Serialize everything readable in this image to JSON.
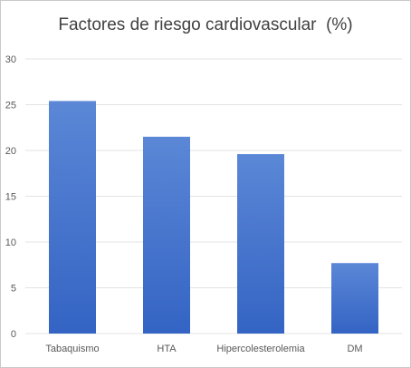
{
  "chart_data": {
    "type": "bar",
    "title": "Factores de riesgo cardiovascular  (%)",
    "categories": [
      "Tabaquismo",
      "HTA",
      "Hipercolesterolemia",
      "DM"
    ],
    "series": [
      {
        "values": [
          25.4,
          21.5,
          19.6,
          7.7
        ]
      }
    ],
    "ylim": [
      0,
      30
    ],
    "yticks": [
      0,
      5,
      10,
      15,
      20,
      25,
      30
    ],
    "grid": true,
    "legend": "none",
    "bar_color_top": "#5b87d6",
    "bar_color_bottom": "#3464c4",
    "grid_color": "#e3e3e3"
  }
}
